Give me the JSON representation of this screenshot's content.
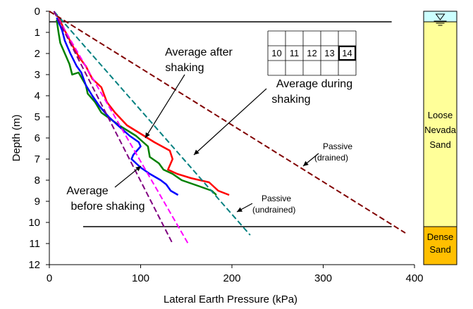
{
  "chart_data": {
    "type": "line",
    "xlabel": "Lateral Earth Pressure (kPa)",
    "ylabel": "Depth (m)",
    "xlim": [
      0,
      400
    ],
    "ylim": [
      0,
      12
    ],
    "y_inverted": true,
    "xticks": [
      0,
      100,
      200,
      300,
      400
    ],
    "yticks": [
      0,
      1,
      2,
      3,
      4,
      5,
      6,
      7,
      8,
      9,
      10,
      11,
      12
    ],
    "grid": false,
    "series": [
      {
        "color": "#ff0000",
        "style": "solid",
        "points": [
          [
            10,
            0.3
          ],
          [
            18,
            1.0
          ],
          [
            25,
            1.6
          ],
          [
            33,
            2.2
          ],
          [
            40,
            2.6
          ],
          [
            47,
            3.2
          ],
          [
            57,
            3.6
          ],
          [
            63,
            4.3
          ],
          [
            72,
            4.8
          ],
          [
            85,
            5.4
          ],
          [
            100,
            5.8
          ],
          [
            115,
            6.2
          ],
          [
            132,
            6.6
          ],
          [
            135,
            7.0
          ],
          [
            130,
            7.5
          ],
          [
            140,
            7.7
          ],
          [
            155,
            7.9
          ],
          [
            175,
            8.1
          ],
          [
            185,
            8.5
          ],
          [
            197,
            8.7
          ]
        ]
      },
      {
        "color": "#008000",
        "style": "solid",
        "points": [
          [
            8,
            0.4
          ],
          [
            10,
            1.0
          ],
          [
            12,
            1.5
          ],
          [
            17,
            2.0
          ],
          [
            22,
            2.5
          ],
          [
            25,
            3.0
          ],
          [
            32,
            2.9
          ],
          [
            40,
            3.5
          ],
          [
            42,
            3.9
          ],
          [
            50,
            4.3
          ],
          [
            57,
            4.8
          ],
          [
            70,
            5.2
          ],
          [
            80,
            5.5
          ],
          [
            95,
            5.9
          ],
          [
            108,
            6.4
          ],
          [
            110,
            6.9
          ],
          [
            120,
            7.2
          ],
          [
            125,
            7.5
          ],
          [
            135,
            7.7
          ],
          [
            145,
            8.0
          ],
          [
            165,
            8.3
          ],
          [
            178,
            8.5
          ],
          [
            183,
            8.7
          ]
        ]
      },
      {
        "color": "#0000ff",
        "style": "solid",
        "points": [
          [
            8,
            0.3
          ],
          [
            14,
            0.9
          ],
          [
            17,
            1.4
          ],
          [
            23,
            2.0
          ],
          [
            30,
            2.6
          ],
          [
            35,
            2.9
          ],
          [
            40,
            3.5
          ],
          [
            47,
            4.0
          ],
          [
            55,
            4.5
          ],
          [
            65,
            5.0
          ],
          [
            75,
            5.4
          ],
          [
            88,
            5.9
          ],
          [
            98,
            6.2
          ],
          [
            100,
            6.4
          ],
          [
            92,
            6.8
          ],
          [
            90,
            7.0
          ],
          [
            100,
            7.4
          ],
          [
            110,
            7.7
          ],
          [
            122,
            8.0
          ],
          [
            128,
            8.2
          ],
          [
            133,
            8.5
          ],
          [
            141,
            8.7
          ]
        ]
      },
      {
        "color": "#008080",
        "style": "dashed",
        "points": [
          [
            5,
            0.0
          ],
          [
            220,
            10.6
          ]
        ]
      },
      {
        "color": "#800000",
        "style": "dashed",
        "points": [
          [
            0,
            0.0
          ],
          [
            390,
            10.5
          ]
        ]
      },
      {
        "color": "#ff00ff",
        "style": "dashed",
        "points": [
          [
            5,
            0.0
          ],
          [
            152,
            11.0
          ]
        ]
      },
      {
        "color": "#800080",
        "style": "dashed",
        "points": [
          [
            5,
            0.0
          ],
          [
            135,
            11.0
          ]
        ]
      }
    ],
    "hlines": [
      {
        "y": 0.5,
        "x": [
          0,
          375
        ]
      },
      {
        "y": 10.2,
        "x": [
          37,
          375
        ]
      }
    ],
    "annotations": [
      {
        "lines": [
          "Average after",
          "shaking"
        ],
        "size": "large"
      },
      {
        "lines": [
          "Average during",
          "shaking"
        ],
        "size": "large"
      },
      {
        "lines": [
          "Average",
          "before shaking"
        ],
        "size": "large"
      },
      {
        "lines": [
          "Passive",
          "(drained)"
        ],
        "size": "small"
      },
      {
        "lines": [
          "Passive",
          "(undrained)"
        ],
        "size": "small"
      }
    ],
    "inset_grid": {
      "labels": [
        "10",
        "11",
        "12",
        "13",
        "14"
      ],
      "highlighted": "14"
    },
    "soil_column": {
      "water_table_depth": 0.5,
      "layers": [
        {
          "label": [
            "Loose",
            "Nevada",
            "Sand"
          ],
          "color": "#ffff99",
          "from": 0.0,
          "to": 10.2
        },
        {
          "label": [
            "Dense",
            "Sand"
          ],
          "color": "#ffbf00",
          "from": 10.2,
          "to": 12.0
        }
      ],
      "water_color": "#ccffff"
    }
  }
}
